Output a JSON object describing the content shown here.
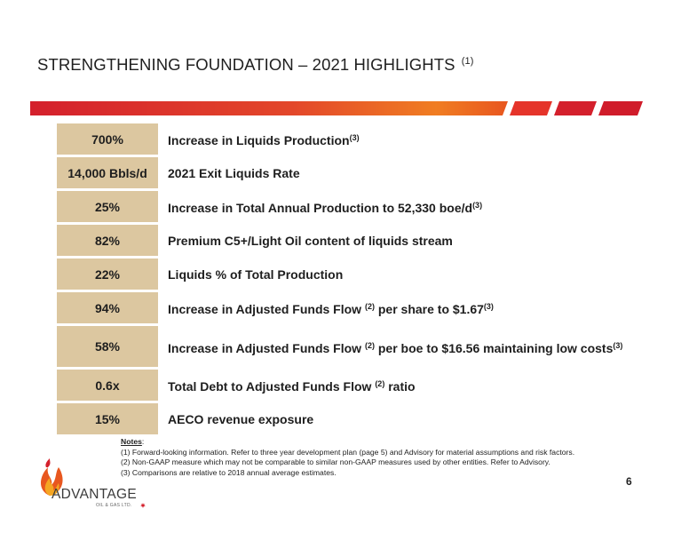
{
  "slide": {
    "title": "STRENGTHENING FOUNDATION – 2021 HIGHLIGHTS",
    "title_note": "(1)",
    "page_number": "6"
  },
  "colors": {
    "accent_red": "#d4202c",
    "accent_orange": "#f07d22",
    "value_cell": "#dcc7a0"
  },
  "highlights": [
    {
      "value": "700%",
      "text": "Increase in Liquids Production",
      "note": "(3)"
    },
    {
      "value": "14,000 Bbls/d",
      "text": "2021 Exit Liquids Rate",
      "note": ""
    },
    {
      "value": "25%",
      "text": "Increase in Total Annual Production to 52,330 boe/d",
      "note": "(3)"
    },
    {
      "value": "82%",
      "text": "Premium C5+/Light Oil content of liquids stream",
      "note": ""
    },
    {
      "value": "22%",
      "text": "Liquids % of Total Production",
      "note": ""
    },
    {
      "value": "94%",
      "text_a": "Increase in Adjusted Funds Flow",
      "note_a": "(2)",
      "text_b": "per share to $1.67",
      "note_b": "(3)"
    },
    {
      "value": "58%",
      "text_a": "Increase in Adjusted Funds Flow",
      "note_a": "(2)",
      "text_b": "per boe to $16.56 maintaining low costs",
      "note_b": "(3)"
    },
    {
      "value": "0.6x",
      "text_a": "Total Debt to Adjusted Funds Flow",
      "note_a": "(2)",
      "text_b": "ratio"
    },
    {
      "value": "15%",
      "text": "AECO revenue exposure",
      "note": ""
    }
  ],
  "notes": {
    "heading": "Notes",
    "items": [
      "(1) Forward-looking information. Refer to three year development plan (page 5) and Advisory for material assumptions and risk factors.",
      "(2) Non-GAAP measure which may not be comparable to similar non-GAAP measures used by other entities. Refer to Advisory.",
      "(3) Comparisons are relative to 2018 annual average estimates."
    ]
  },
  "logo": {
    "name": "ADVANTAGE",
    "sub": "OIL & GAS LTD."
  }
}
